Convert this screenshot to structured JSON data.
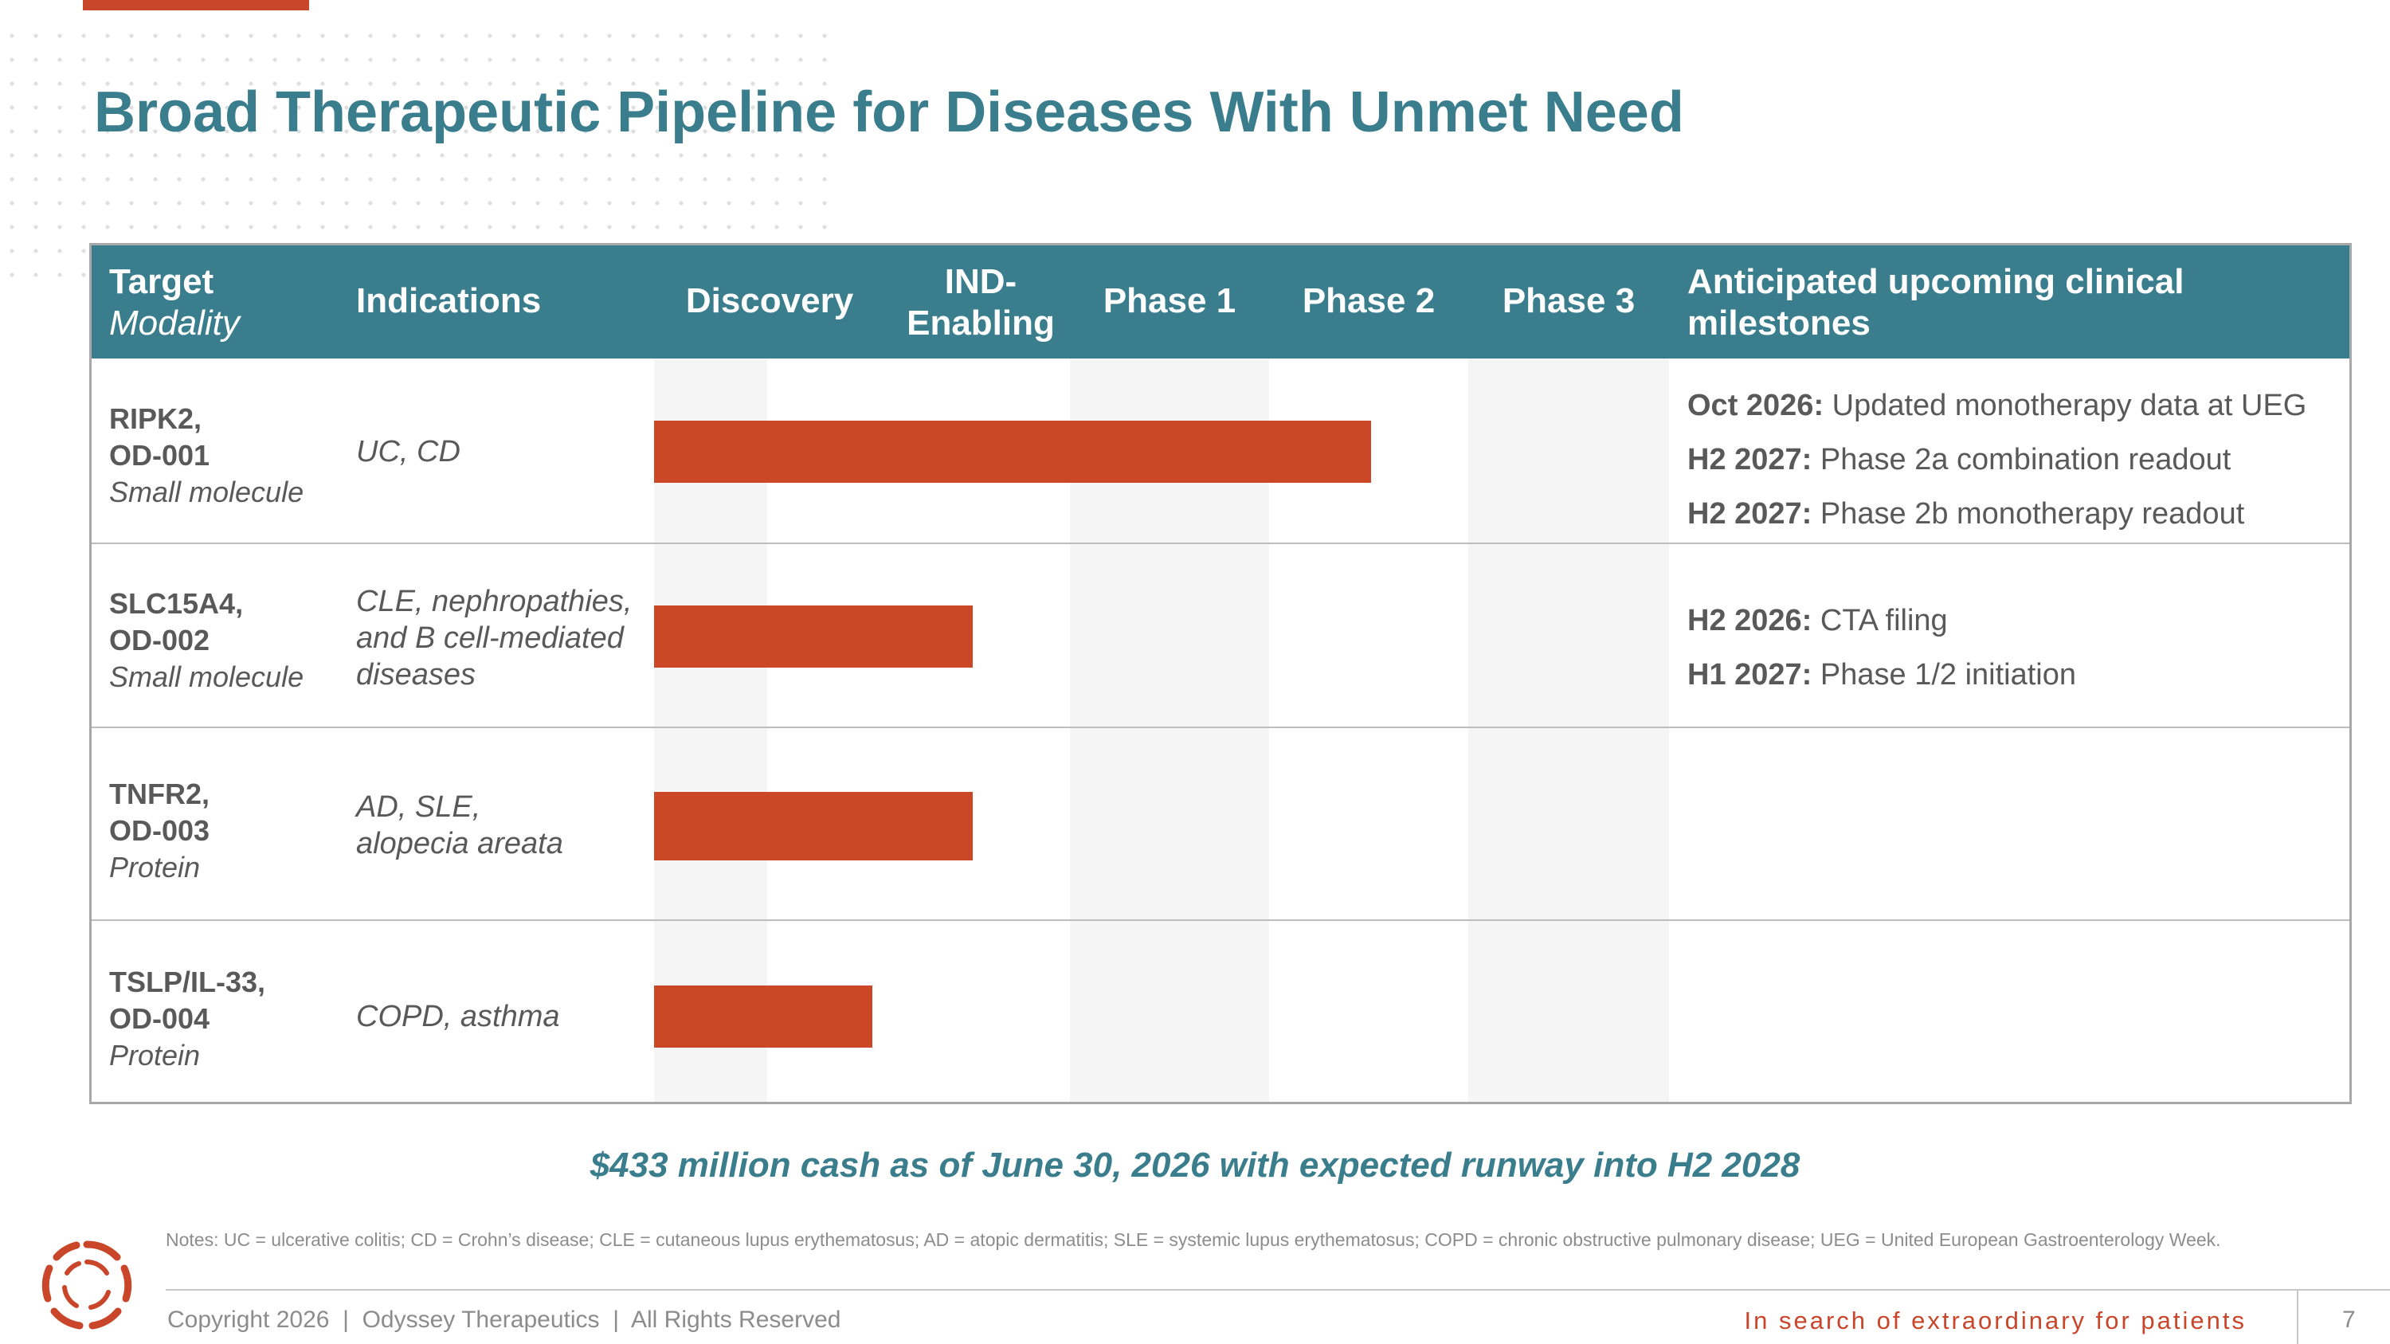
{
  "colors": {
    "teal": "#3a7d8c",
    "orange": "#cc4726",
    "text_gray": "#595959"
  },
  "title": "Broad Therapeutic Pipeline for Diseases With Unmet Need",
  "table": {
    "headers": {
      "target": "Target",
      "modality": "Modality",
      "indications": "Indications",
      "discovery": "Discovery",
      "ind_enabling_1": "IND-",
      "ind_enabling_2": "Enabling",
      "phase1": "Phase 1",
      "phase2": "Phase 2",
      "phase3": "Phase 3",
      "milestones_1": "Anticipated upcoming clinical",
      "milestones_2": "milestones"
    },
    "stages": [
      "Discovery",
      "IND-Enabling",
      "Phase 1",
      "Phase 2",
      "Phase 3"
    ],
    "rows": [
      {
        "target_1": "RIPK2,",
        "target_2": "OD-001",
        "modality": "Small molecule",
        "ind_1": "UC, CD",
        "progress_stage": "Phase 2",
        "progress_fraction_of_pipeline": 0.7,
        "milestones": [
          {
            "date": "Oct 2026:",
            "text": " Updated monotherapy data at UEG"
          },
          {
            "date": "H2 2027:",
            "text": " Phase 2a combination readout"
          },
          {
            "date": "H2 2027:",
            "text": " Phase 2b monotherapy readout"
          }
        ]
      },
      {
        "target_1": "SLC15A4,",
        "target_2": "OD-002",
        "modality": "Small molecule",
        "ind_1": "CLE, nephropathies,",
        "ind_2": "and B cell-mediated",
        "ind_3": "diseases",
        "progress_stage": "IND-Enabling",
        "progress_fraction_of_pipeline": 0.3,
        "milestones": [
          {
            "date": "H2 2026:",
            "text": " CTA filing"
          },
          {
            "date": "H1 2027:",
            "text": " Phase 1/2 initiation"
          }
        ]
      },
      {
        "target_1": "TNFR2,",
        "target_2": "OD-003",
        "modality": "Protein",
        "ind_1": "AD, SLE,",
        "ind_2": "alopecia areata",
        "progress_stage": "IND-Enabling",
        "progress_fraction_of_pipeline": 0.3,
        "milestones": []
      },
      {
        "target_1": "TSLP/IL-33,",
        "target_2": "OD-004",
        "modality": "Protein",
        "ind_1": "COPD, asthma",
        "progress_stage": "Discovery",
        "progress_fraction_of_pipeline": 0.2,
        "milestones": []
      }
    ]
  },
  "cash_statement": "$433 million cash as of June 30, 2026 with expected runway into H2 2028",
  "notes": "Notes: UC = ulcerative colitis; CD = Crohn’s disease; CLE = cutaneous lupus erythematosus; AD = atopic dermatitis; SLE = systemic lupus erythematosus; COPD = chronic obstructive pulmonary disease; UEG = United European Gastroenterology Week.",
  "footer": {
    "copyright": "Copyright 2026  |  Odyssey Therapeutics  |  All Rights Reserved",
    "tagline": "In search of extraordinary for patients",
    "page_number": "7"
  },
  "logo_icon": "odyssey-swirl-logo"
}
